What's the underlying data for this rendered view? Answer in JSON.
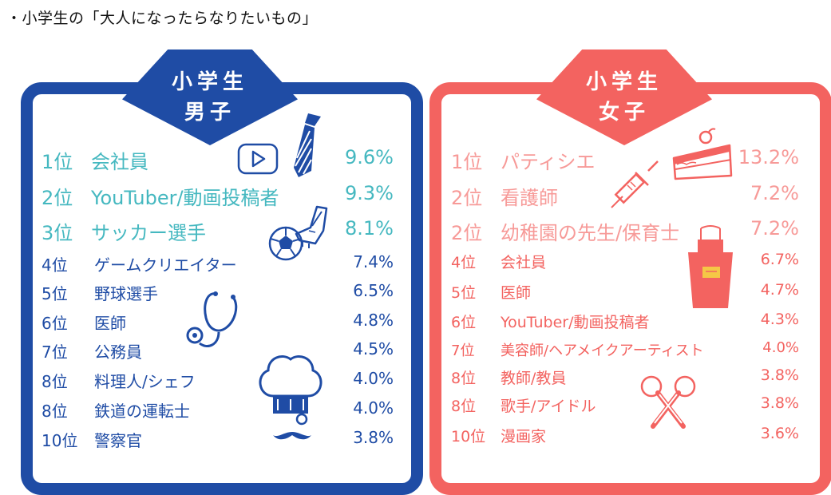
{
  "title": "・小学生の「大人になったらなりたいもの」",
  "boys": {
    "header_line1": "小学生",
    "header_line2": "男子",
    "rows": [
      {
        "rank": "1位",
        "name": "会社員",
        "pct": "9.6%"
      },
      {
        "rank": "2位",
        "name": "YouTuber/動画投稿者",
        "pct": "9.3%"
      },
      {
        "rank": "3位",
        "name": "サッカー選手",
        "pct": "8.1%"
      },
      {
        "rank": "4位",
        "name": "ゲームクリエイター",
        "pct": "7.4%"
      },
      {
        "rank": "5位",
        "name": "野球選手",
        "pct": "6.5%"
      },
      {
        "rank": "6位",
        "name": "医師",
        "pct": "4.8%"
      },
      {
        "rank": "7位",
        "name": "公務員",
        "pct": "4.5%"
      },
      {
        "rank": "8位",
        "name": "料理人/シェフ",
        "pct": "4.0%"
      },
      {
        "rank": "8位",
        "name": "鉄道の運転士",
        "pct": "4.0%"
      },
      {
        "rank": "10位",
        "name": "警察官",
        "pct": "3.8%"
      }
    ]
  },
  "girls": {
    "header_line1": "小学生",
    "header_line2": "女子",
    "rows": [
      {
        "rank": "1位",
        "name": "パティシエ",
        "pct": "13.2%"
      },
      {
        "rank": "2位",
        "name": "看護師",
        "pct": "7.2%"
      },
      {
        "rank": "2位",
        "name": "幼稚園の先生/保育士",
        "pct": "7.2%"
      },
      {
        "rank": "4位",
        "name": "会社員",
        "pct": "6.7%"
      },
      {
        "rank": "5位",
        "name": "医師",
        "pct": "4.7%"
      },
      {
        "rank": "6位",
        "name": "YouTuber/動画投稿者",
        "pct": "4.3%"
      },
      {
        "rank": "7位",
        "name": "美容師/ヘアメイクアーティスト",
        "pct": "4.0%"
      },
      {
        "rank": "8位",
        "name": "教師/教員",
        "pct": "3.8%"
      },
      {
        "rank": "8位",
        "name": "歌手/アイドル",
        "pct": "3.8%"
      },
      {
        "rank": "10位",
        "name": "漫画家",
        "pct": "3.6%"
      }
    ]
  },
  "colors": {
    "boy_border": "#1f4ca5",
    "boy_top": "#45b8c0",
    "boy_text": "#1f4ca5",
    "girl_border": "#f36360",
    "girl_top": "#f79a98",
    "girl_text": "#f36360"
  },
  "icons": {
    "boy": [
      "play-button-icon",
      "necktie-icon",
      "soccer-ball-icon",
      "cleats-icon",
      "stethoscope-icon",
      "chef-hat-icon",
      "mustache-icon"
    ],
    "girl": [
      "cake-slice-icon",
      "syringe-icon",
      "apron-icon",
      "microphones-icon"
    ]
  }
}
